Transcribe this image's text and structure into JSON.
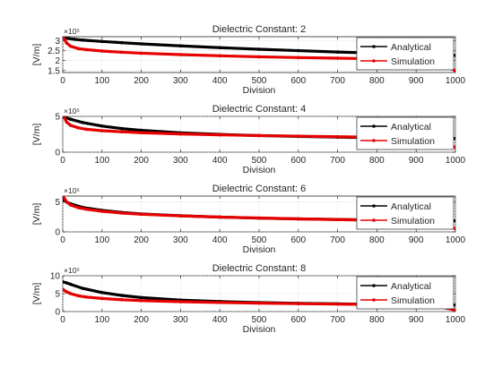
{
  "figure": {
    "background": "#ffffff",
    "axis_color": "#262626",
    "grid_color": "#d9d9d9"
  },
  "chart_data": [
    {
      "type": "line",
      "title": "Dielectric Constant: 2",
      "xlabel": "Division",
      "ylabel": "[V/m]",
      "y_exponent": "×10⁵",
      "xlim": [
        0,
        1000
      ],
      "ylim": [
        1.4,
        3.2
      ],
      "xticks": [
        0,
        100,
        200,
        300,
        400,
        500,
        600,
        700,
        800,
        900,
        1000
      ],
      "yticks": [
        1.5,
        2,
        2.5,
        3
      ],
      "ytick_labels": [
        "1.5",
        "2",
        "2.5",
        "3"
      ],
      "grid": true,
      "legend": "top-right",
      "series": [
        {
          "name": "Analytical",
          "color": "#000000",
          "x": [
            0,
            10,
            30,
            50,
            100,
            150,
            200,
            300,
            400,
            500,
            600,
            700,
            800,
            900,
            1000
          ],
          "y": [
            3.15,
            3.12,
            3.07,
            3.03,
            2.96,
            2.9,
            2.84,
            2.74,
            2.65,
            2.57,
            2.5,
            2.43,
            2.37,
            2.31,
            2.26
          ]
        },
        {
          "name": "Simulation",
          "color": "#e60000",
          "x": [
            0,
            10,
            20,
            40,
            60,
            100,
            150,
            200,
            300,
            400,
            500,
            600,
            700,
            800,
            900,
            950,
            980,
            1000
          ],
          "y": [
            3.2,
            2.88,
            2.72,
            2.6,
            2.55,
            2.48,
            2.42,
            2.37,
            2.3,
            2.24,
            2.19,
            2.15,
            2.12,
            2.09,
            2.05,
            1.95,
            1.72,
            1.48
          ]
        }
      ]
    },
    {
      "type": "line",
      "title": "Dielectric Constant: 4",
      "xlabel": "Division",
      "ylabel": "[V/m]",
      "y_exponent": "×10⁵",
      "xlim": [
        0,
        1000
      ],
      "ylim": [
        0,
        5
      ],
      "xticks": [
        0,
        100,
        200,
        300,
        400,
        500,
        600,
        700,
        800,
        900,
        1000
      ],
      "yticks": [
        0,
        5
      ],
      "ytick_labels": [
        "0",
        "5"
      ],
      "grid": true,
      "legend": "top-right",
      "series": [
        {
          "name": "Analytical",
          "color": "#000000",
          "x": [
            0,
            10,
            20,
            50,
            100,
            150,
            200,
            300,
            400,
            500,
            600,
            700,
            800,
            900,
            1000
          ],
          "y": [
            4.95,
            4.8,
            4.6,
            4.15,
            3.65,
            3.3,
            3.05,
            2.7,
            2.48,
            2.32,
            2.2,
            2.1,
            2.02,
            1.96,
            1.9
          ]
        },
        {
          "name": "Simulation",
          "color": "#e60000",
          "x": [
            0,
            10,
            20,
            40,
            60,
            100,
            150,
            200,
            300,
            400,
            500,
            600,
            700,
            800,
            900,
            950,
            980,
            1000
          ],
          "y": [
            5.2,
            4.2,
            3.75,
            3.4,
            3.2,
            3.0,
            2.85,
            2.72,
            2.55,
            2.42,
            2.32,
            2.24,
            2.16,
            2.08,
            2.0,
            1.7,
            1.15,
            0.65
          ]
        }
      ]
    },
    {
      "type": "line",
      "title": "Dielectric Constant: 6",
      "xlabel": "Division",
      "ylabel": "[V/m]",
      "y_exponent": "×10⁵",
      "xlim": [
        0,
        1000
      ],
      "ylim": [
        0,
        6
      ],
      "xticks": [
        0,
        100,
        200,
        300,
        400,
        500,
        600,
        700,
        800,
        900,
        1000
      ],
      "yticks": [
        0,
        5
      ],
      "ytick_labels": [
        "0",
        "5"
      ],
      "grid": true,
      "legend": "top-right",
      "series": [
        {
          "name": "Analytical",
          "color": "#000000",
          "x": [
            0,
            10,
            20,
            50,
            100,
            150,
            200,
            300,
            400,
            500,
            600,
            700,
            800,
            900,
            1000
          ],
          "y": [
            5.4,
            5.0,
            4.7,
            4.1,
            3.6,
            3.25,
            3.0,
            2.7,
            2.48,
            2.3,
            2.18,
            2.08,
            1.99,
            1.92,
            1.86
          ]
        },
        {
          "name": "Simulation",
          "color": "#e60000",
          "x": [
            0,
            10,
            20,
            40,
            60,
            100,
            150,
            200,
            300,
            400,
            500,
            600,
            700,
            800,
            900,
            950,
            980,
            1000
          ],
          "y": [
            6.1,
            5.0,
            4.5,
            4.05,
            3.8,
            3.45,
            3.15,
            2.95,
            2.68,
            2.48,
            2.32,
            2.18,
            2.06,
            1.95,
            1.82,
            1.5,
            1.0,
            0.55
          ]
        }
      ]
    },
    {
      "type": "line",
      "title": "Dielectric Constant: 8",
      "xlabel": "Division",
      "ylabel": "[V/m]",
      "y_exponent": "×10⁵",
      "xlim": [
        0,
        1000
      ],
      "ylim": [
        0,
        10
      ],
      "xticks": [
        0,
        100,
        200,
        300,
        400,
        500,
        600,
        700,
        800,
        900,
        1000
      ],
      "yticks": [
        0,
        5,
        10
      ],
      "ytick_labels": [
        "0",
        "5",
        "10"
      ],
      "grid": true,
      "legend": "top-right",
      "series": [
        {
          "name": "Analytical",
          "color": "#000000",
          "x": [
            0,
            10,
            20,
            50,
            100,
            150,
            200,
            300,
            400,
            500,
            600,
            700,
            800,
            900,
            1000
          ],
          "y": [
            8.3,
            8.0,
            7.6,
            6.5,
            5.3,
            4.5,
            3.9,
            3.2,
            2.8,
            2.5,
            2.3,
            2.15,
            2.02,
            1.92,
            1.85
          ]
        },
        {
          "name": "Simulation",
          "color": "#e60000",
          "x": [
            0,
            10,
            20,
            40,
            60,
            100,
            150,
            200,
            300,
            400,
            500,
            600,
            700,
            800,
            900,
            950,
            980,
            1000
          ],
          "y": [
            6.2,
            5.5,
            5.0,
            4.4,
            4.05,
            3.65,
            3.3,
            3.05,
            2.75,
            2.52,
            2.35,
            2.2,
            2.08,
            1.96,
            1.82,
            1.5,
            0.9,
            0.4
          ]
        }
      ]
    }
  ]
}
